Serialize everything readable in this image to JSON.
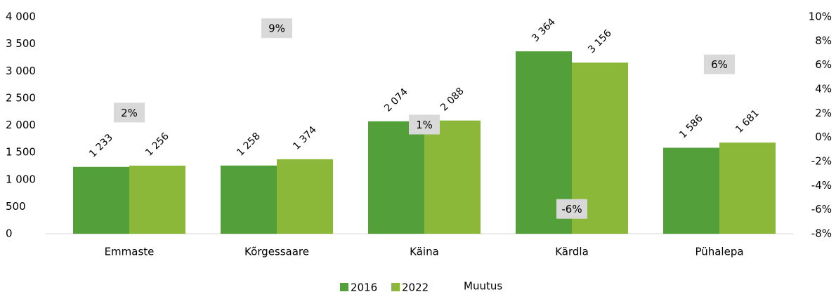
{
  "chart_data": {
    "type": "bar",
    "categories": [
      "Emmaste",
      "Kõrgessaare",
      "Käina",
      "Kärdla",
      "Pühalepa"
    ],
    "series": [
      {
        "name": "2016",
        "color": "#539f3a",
        "values": [
          1233,
          1258,
          2074,
          3364,
          1586
        ],
        "value_labels": [
          "1 233",
          "1 258",
          "2 074",
          "3 364",
          "1 586"
        ]
      },
      {
        "name": "2022",
        "color": "#8cb83a",
        "values": [
          1256,
          1374,
          2088,
          3156,
          1681
        ],
        "value_labels": [
          "1 256",
          "1 374",
          "2 088",
          "3 156",
          "1 681"
        ]
      },
      {
        "name": "Muutus",
        "axis": "y2",
        "color": "#d9d9d9",
        "values": [
          2,
          9,
          1,
          -6,
          6
        ],
        "value_labels": [
          "2%",
          "9%",
          "1%",
          "-6%",
          "6%"
        ]
      }
    ],
    "ylim": [
      0,
      4000
    ],
    "yticks": [
      0,
      500,
      {
        "value": 1000,
        "label": "1 000"
      },
      {
        "value": 1500,
        "label": "1 500"
      },
      {
        "value": 2000,
        "label": "2 000"
      },
      {
        "value": 2500,
        "label": "2 500"
      },
      {
        "value": 3000,
        "label": "3 000"
      },
      {
        "value": 3500,
        "label": "3 500"
      },
      {
        "value": 4000,
        "label": "4 000"
      }
    ],
    "y2lim": [
      -8,
      10
    ],
    "y2ticks": [
      {
        "value": -8,
        "label": "-8%"
      },
      {
        "value": -6,
        "label": "-6%"
      },
      {
        "value": -4,
        "label": "-4%"
      },
      {
        "value": -2,
        "label": "-2%"
      },
      {
        "value": 0,
        "label": "0%"
      },
      {
        "value": 2,
        "label": "2%"
      },
      {
        "value": 4,
        "label": "4%"
      },
      {
        "value": 6,
        "label": "6%"
      },
      {
        "value": 8,
        "label": "8%"
      },
      {
        "value": 10,
        "label": "10%"
      }
    ],
    "legend": "bottom"
  }
}
